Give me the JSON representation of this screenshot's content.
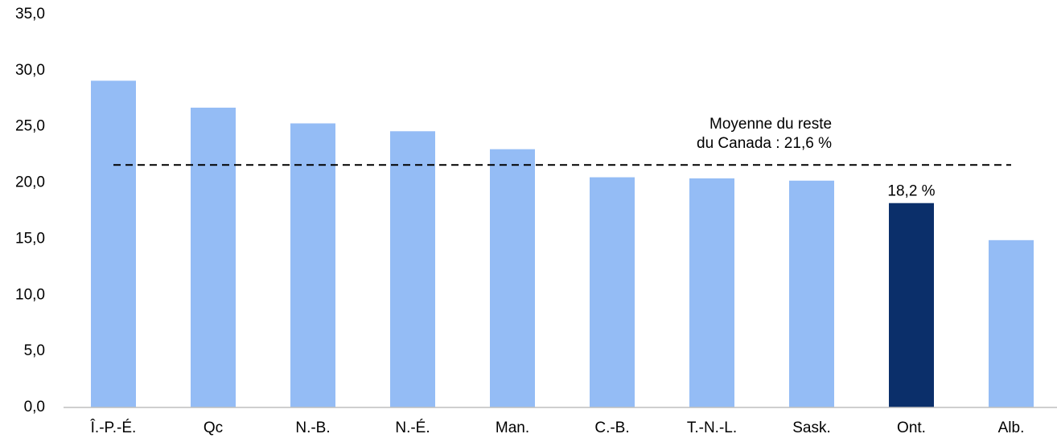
{
  "chart_data": {
    "type": "bar",
    "categories": [
      "Î.-P.-É.",
      "Qc",
      "N.-B.",
      "N.-É.",
      "Man.",
      "C.-B.",
      "T.-N.-L.",
      "Sask.",
      "Ont.",
      "Alb."
    ],
    "values": [
      29.1,
      26.7,
      25.3,
      24.6,
      23.0,
      20.5,
      20.4,
      20.2,
      18.2,
      14.9
    ],
    "value_labels": [
      null,
      null,
      null,
      null,
      null,
      null,
      null,
      null,
      "18,2 %",
      null
    ],
    "colors": [
      "#94bcf5",
      "#94bcf5",
      "#94bcf5",
      "#94bcf5",
      "#94bcf5",
      "#94bcf5",
      "#94bcf5",
      "#94bcf5",
      "#0b2f6a",
      "#94bcf5"
    ],
    "ylim": [
      0,
      35
    ],
    "yticks": [
      {
        "value": 0,
        "label": "0,0"
      },
      {
        "value": 5,
        "label": "5,0"
      },
      {
        "value": 10,
        "label": "10,0"
      },
      {
        "value": 15,
        "label": "15,0"
      },
      {
        "value": 20,
        "label": "20,0"
      },
      {
        "value": 25,
        "label": "25,0"
      },
      {
        "value": 30,
        "label": "30,0"
      },
      {
        "value": 35,
        "label": "35,0"
      }
    ],
    "reference_line": {
      "value": 21.6,
      "label": [
        "Moyenne du reste",
        "du Canada : 21,6 %"
      ]
    }
  }
}
